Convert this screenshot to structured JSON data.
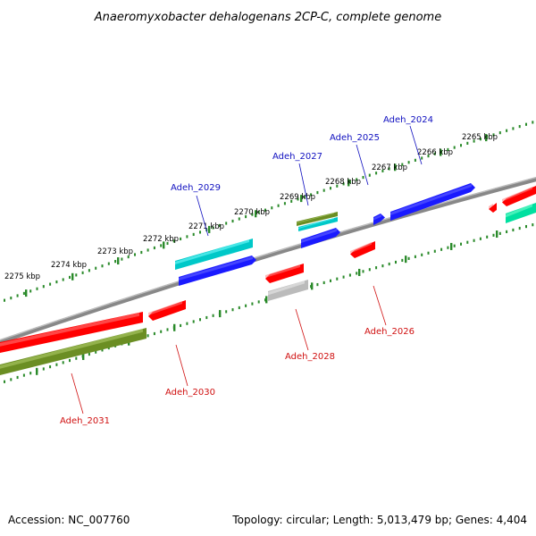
{
  "title": "Anaeromyxobacter dehalogenans 2CP-C, complete genome",
  "accession": "Accession: NC_007760",
  "summary": "Topology: circular; Length: 5,013,479 bp; Genes: 4,404",
  "colors": {
    "backbone": "#888888",
    "tick": "#2a8a2a",
    "forward_label": "#1010c0",
    "reverse_label": "#d01010",
    "red": "#ff0000",
    "blue": "#1a1aff",
    "cyan": "#00c8c8",
    "olive": "#6b8e23",
    "gray": "#bbbbbb",
    "teal": "#00e0a0"
  },
  "ticks": [
    {
      "label": "2265 kbp",
      "value": 2265
    },
    {
      "label": "2266 kbp",
      "value": 2266
    },
    {
      "label": "2267 kbp",
      "value": 2267
    },
    {
      "label": "2268 kbp",
      "value": 2268
    },
    {
      "label": "2269 kbp",
      "value": 2269
    },
    {
      "label": "2270 kbp",
      "value": 2270
    },
    {
      "label": "2271 kbp",
      "value": 2271
    },
    {
      "label": "2272 kbp",
      "value": 2272
    },
    {
      "label": "2273 kbp",
      "value": 2273
    },
    {
      "label": "2274 kbp",
      "value": 2274
    },
    {
      "label": "2275 kbp",
      "value": 2275
    }
  ],
  "forward_labels": [
    "Adeh_2024",
    "Adeh_2025",
    "Adeh_2027",
    "Adeh_2029"
  ],
  "reverse_labels": [
    "Adeh_2026",
    "Adeh_2028",
    "Adeh_2030",
    "Adeh_2031"
  ]
}
